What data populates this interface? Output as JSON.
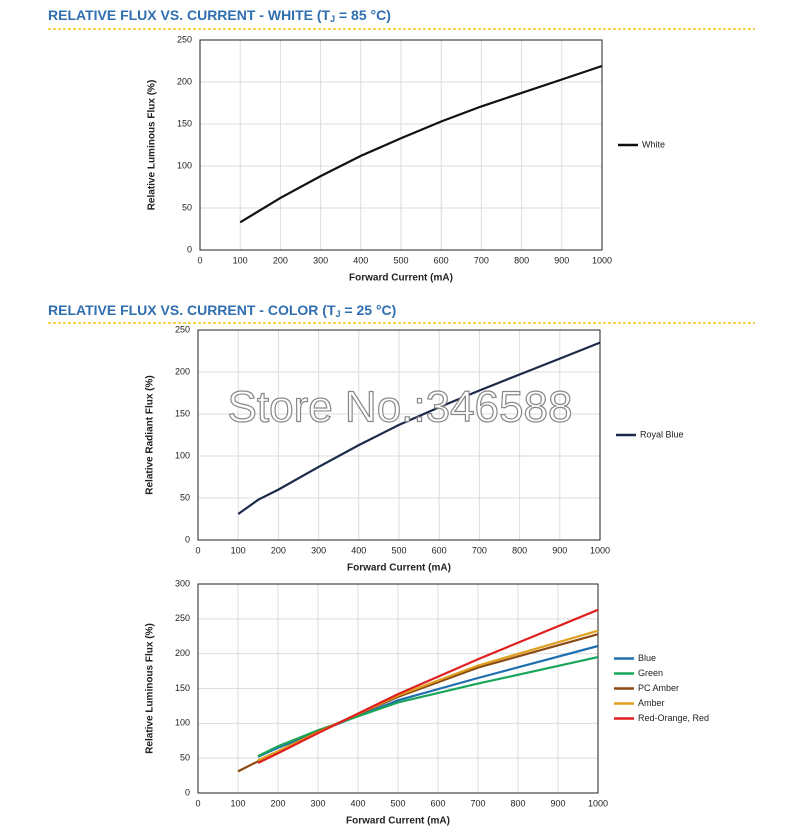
{
  "headings": [
    {
      "prefix": "RELATIVE FLUX VS. CURRENT - WHITE (T",
      "subscript": "J",
      "suffix": " = 85 °C)"
    },
    {
      "prefix": "RELATIVE FLUX VS. CURRENT - COLOR (T",
      "subscript": "J",
      "suffix": " = 25 °C)"
    }
  ],
  "watermark": "Store No.:346588",
  "chart_data": [
    {
      "type": "line",
      "x_label": "Forward Current (mA)",
      "y_label": "Relative Luminous Flux (%)",
      "xlim": [
        0,
        1000
      ],
      "xticks": [
        0,
        100,
        200,
        300,
        400,
        500,
        600,
        700,
        800,
        900,
        1000
      ],
      "ylim": [
        0,
        250
      ],
      "yticks": [
        0,
        50,
        100,
        150,
        200,
        250
      ],
      "grid": true,
      "legend": "right",
      "series": [
        {
          "name": "White",
          "color": "#111111",
          "x": [
            100,
            200,
            300,
            400,
            500,
            600,
            700,
            800,
            900,
            1000
          ],
          "values": [
            33,
            62,
            88,
            112,
            133,
            153,
            171,
            187,
            203,
            219
          ]
        }
      ]
    },
    {
      "type": "line",
      "x_label": "Forward Current (mA)",
      "y_label": "Relative Radiant Flux (%)",
      "xlim": [
        0,
        1000
      ],
      "xticks": [
        0,
        100,
        200,
        300,
        400,
        500,
        600,
        700,
        800,
        900,
        1000
      ],
      "ylim": [
        0,
        250
      ],
      "yticks": [
        0,
        50,
        100,
        150,
        200,
        250
      ],
      "grid": true,
      "legend": "right",
      "series": [
        {
          "name": "Royal Blue",
          "color": "#1c2a4a",
          "x": [
            100,
            150,
            200,
            300,
            400,
            500,
            600,
            700,
            800,
            900,
            1000
          ],
          "values": [
            31,
            48,
            60,
            87,
            113,
            137,
            158,
            178,
            197,
            216,
            235
          ]
        }
      ]
    },
    {
      "type": "line",
      "x_label": "Forward Current (mA)",
      "y_label": "Relative Luminous Flux (%)",
      "xlim": [
        0,
        1000
      ],
      "xticks": [
        0,
        100,
        200,
        300,
        400,
        500,
        600,
        700,
        800,
        900,
        1000
      ],
      "ylim": [
        0,
        300
      ],
      "yticks": [
        0,
        50,
        100,
        150,
        200,
        250,
        300
      ],
      "grid": true,
      "legend": "right",
      "series": [
        {
          "name": "Blue",
          "color": "#1f6fb0",
          "x": [
            150,
            200,
            300,
            500,
            700,
            1000
          ],
          "values": [
            52,
            65,
            88,
            133,
            165,
            211
          ]
        },
        {
          "name": "Green",
          "color": "#1aa65a",
          "x": [
            150,
            200,
            300,
            500,
            700,
            1000
          ],
          "values": [
            53,
            67,
            90,
            130,
            157,
            195
          ]
        },
        {
          "name": "PC Amber",
          "color": "#8b4a12",
          "x": [
            100,
            200,
            300,
            500,
            700,
            1000
          ],
          "values": [
            31,
            60,
            88,
            138,
            180,
            228
          ]
        },
        {
          "name": "Amber",
          "color": "#e0a020",
          "x": [
            150,
            200,
            300,
            500,
            700,
            1000
          ],
          "values": [
            47,
            60,
            87,
            140,
            183,
            233
          ]
        },
        {
          "name": "Red-Orange, Red",
          "color": "#e02020",
          "x": [
            150,
            200,
            300,
            500,
            700,
            1000
          ],
          "values": [
            43,
            57,
            86,
            142,
            192,
            263
          ]
        }
      ]
    }
  ]
}
